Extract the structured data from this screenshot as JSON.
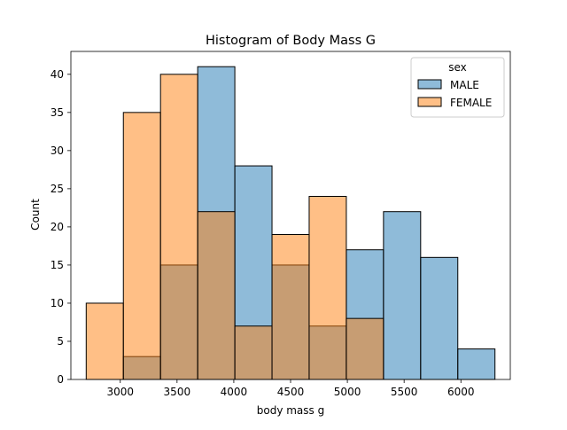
{
  "chart_data": {
    "type": "histogram",
    "title": "Histogram of Body Mass G",
    "xlabel": "body mass g",
    "ylabel": "Count",
    "xlim": [
      2565,
      6435
    ],
    "ylim": [
      0,
      43
    ],
    "x_ticks": [
      3000,
      3500,
      4000,
      4500,
      5000,
      5500,
      6000
    ],
    "y_ticks": [
      0,
      5,
      10,
      15,
      20,
      25,
      30,
      35,
      40
    ],
    "bin_edges": [
      2700,
      3027.3,
      3354.5,
      3681.8,
      4009.1,
      4336.4,
      4663.6,
      4990.9,
      5318.2,
      5645.5,
      5972.7,
      6300
    ],
    "series": [
      {
        "name": "MALE",
        "color": "#1f77b4",
        "counts": [
          0,
          3,
          15,
          41,
          28,
          15,
          7,
          17,
          22,
          16,
          4
        ]
      },
      {
        "name": "FEMALE",
        "color": "#ff7f0e",
        "counts": [
          10,
          35,
          40,
          22,
          7,
          19,
          24,
          8,
          0,
          0,
          0
        ]
      }
    ],
    "legend": {
      "title": "sex",
      "placement": "top-right"
    },
    "grid": false
  }
}
